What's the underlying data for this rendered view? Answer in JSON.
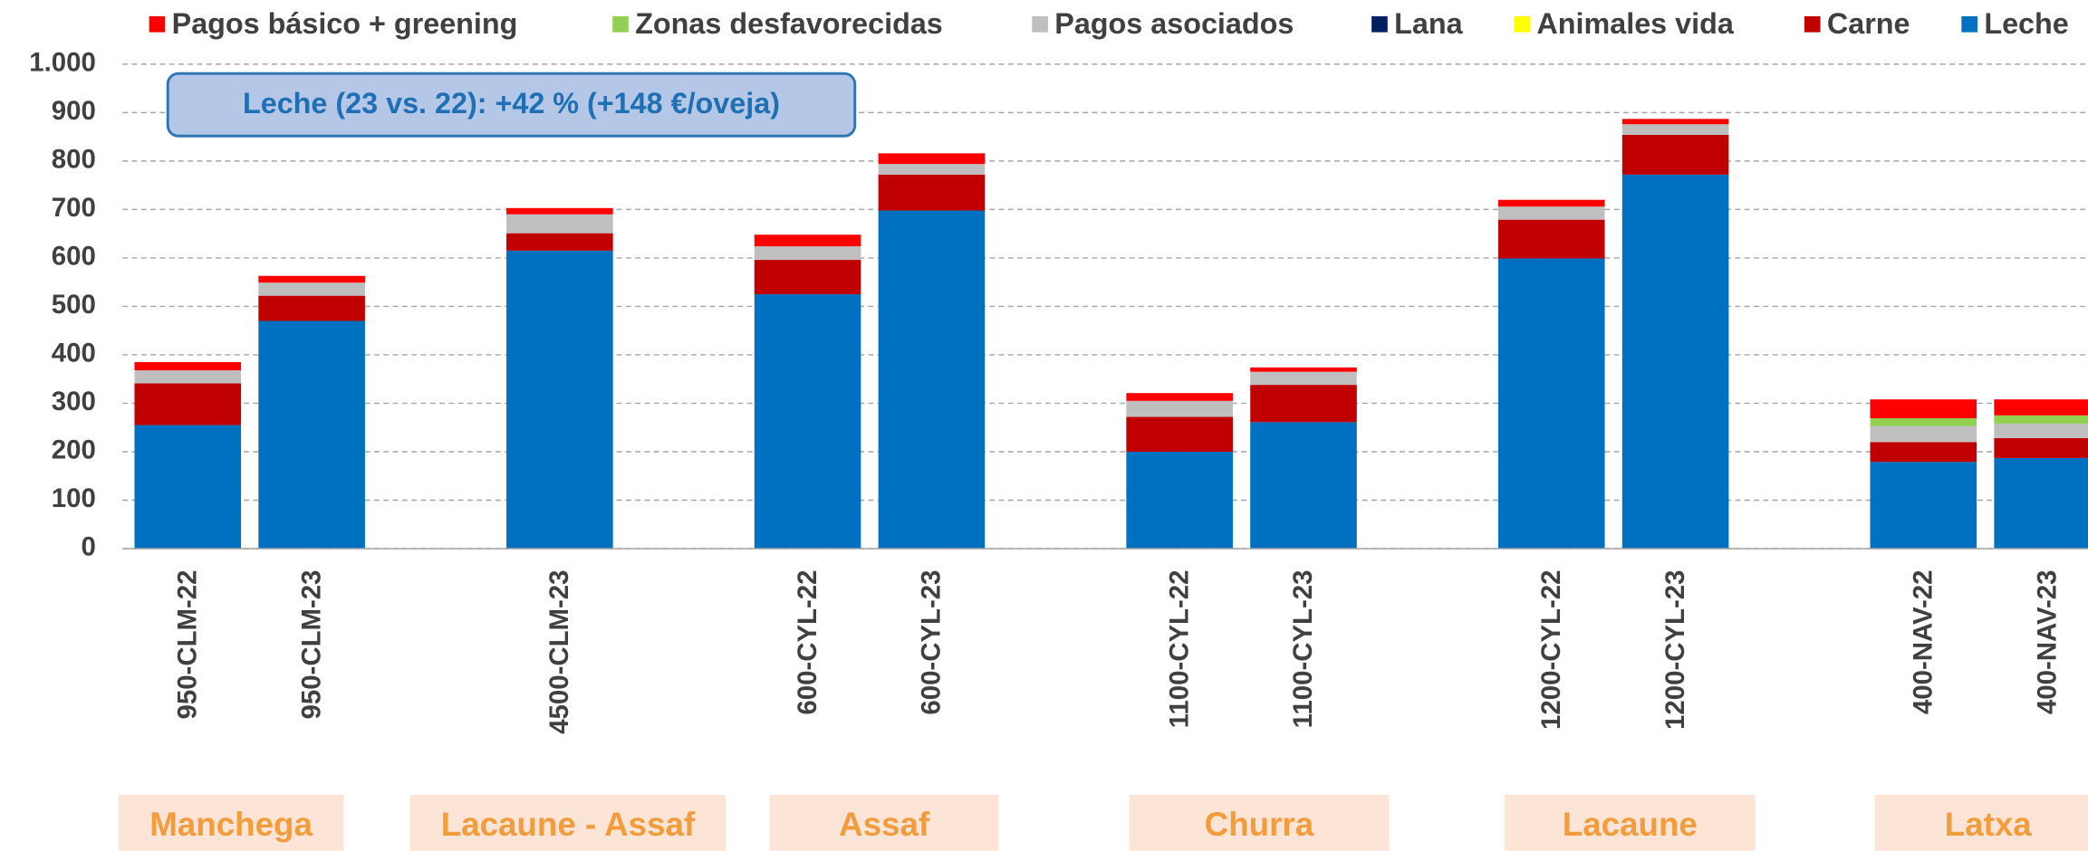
{
  "chart_data": {
    "type": "stacked-bar",
    "annotation": "Leche (23 vs. 22): +42 % (+148 €/oveja)",
    "categories": [
      "950-CLM-22",
      "950-CLM-23",
      null,
      "4500-CLM-23",
      null,
      "600-CYL-22",
      "600-CYL-23",
      null,
      "1100-CYL-22",
      "1100-CYL-23",
      null,
      "1200-CYL-22",
      "1200-CYL-23",
      null,
      "400-NAV-22",
      "400-NAV-23"
    ],
    "groups": [
      "Manchega",
      "Lacaune - Assaf",
      "Assaf",
      "Churra",
      "Lacaune",
      "Latxa"
    ],
    "series": [
      {
        "name": "Leche",
        "color": "#0070c0",
        "values": [
          255,
          470,
          null,
          615,
          null,
          525,
          698,
          null,
          200,
          261,
          null,
          599,
          772,
          null,
          179,
          187
        ]
      },
      {
        "name": "Carne",
        "color": "#c00000",
        "values": [
          86,
          52,
          null,
          36,
          null,
          71,
          74,
          null,
          72,
          77,
          null,
          80,
          82,
          null,
          41,
          41
        ]
      },
      {
        "name": "Animales vida",
        "color": "#ffff00",
        "values": [
          0,
          0,
          null,
          0,
          null,
          0,
          0,
          null,
          0,
          0,
          null,
          0,
          0,
          null,
          0,
          0
        ]
      },
      {
        "name": "Lana",
        "color": "#002060",
        "values": [
          0,
          0,
          null,
          0,
          null,
          0,
          0,
          null,
          0,
          0,
          null,
          0,
          0,
          null,
          0,
          0
        ]
      },
      {
        "name": "Pagos asociados",
        "color": "#bfbfbf",
        "values": [
          27,
          27,
          null,
          39,
          null,
          28,
          22,
          null,
          33,
          27,
          null,
          27,
          22,
          null,
          33,
          30
        ]
      },
      {
        "name": "Zonas desfavorecidas",
        "color": "#92d050",
        "values": [
          0,
          0,
          null,
          0,
          null,
          0,
          0,
          null,
          0,
          0,
          null,
          0,
          0,
          null,
          16,
          17
        ]
      },
      {
        "name": "Pagos básico + greening",
        "color": "#ff0000",
        "values": [
          17,
          14,
          null,
          13,
          null,
          24,
          22,
          null,
          16,
          9,
          null,
          14,
          11,
          null,
          39,
          33
        ]
      }
    ],
    "ylim": [
      0,
      1000
    ],
    "yticks": [
      0,
      100,
      200,
      300,
      400,
      500,
      600,
      700,
      800,
      900,
      {
        "value": 1000,
        "label": "1.000"
      }
    ],
    "grid": true
  }
}
